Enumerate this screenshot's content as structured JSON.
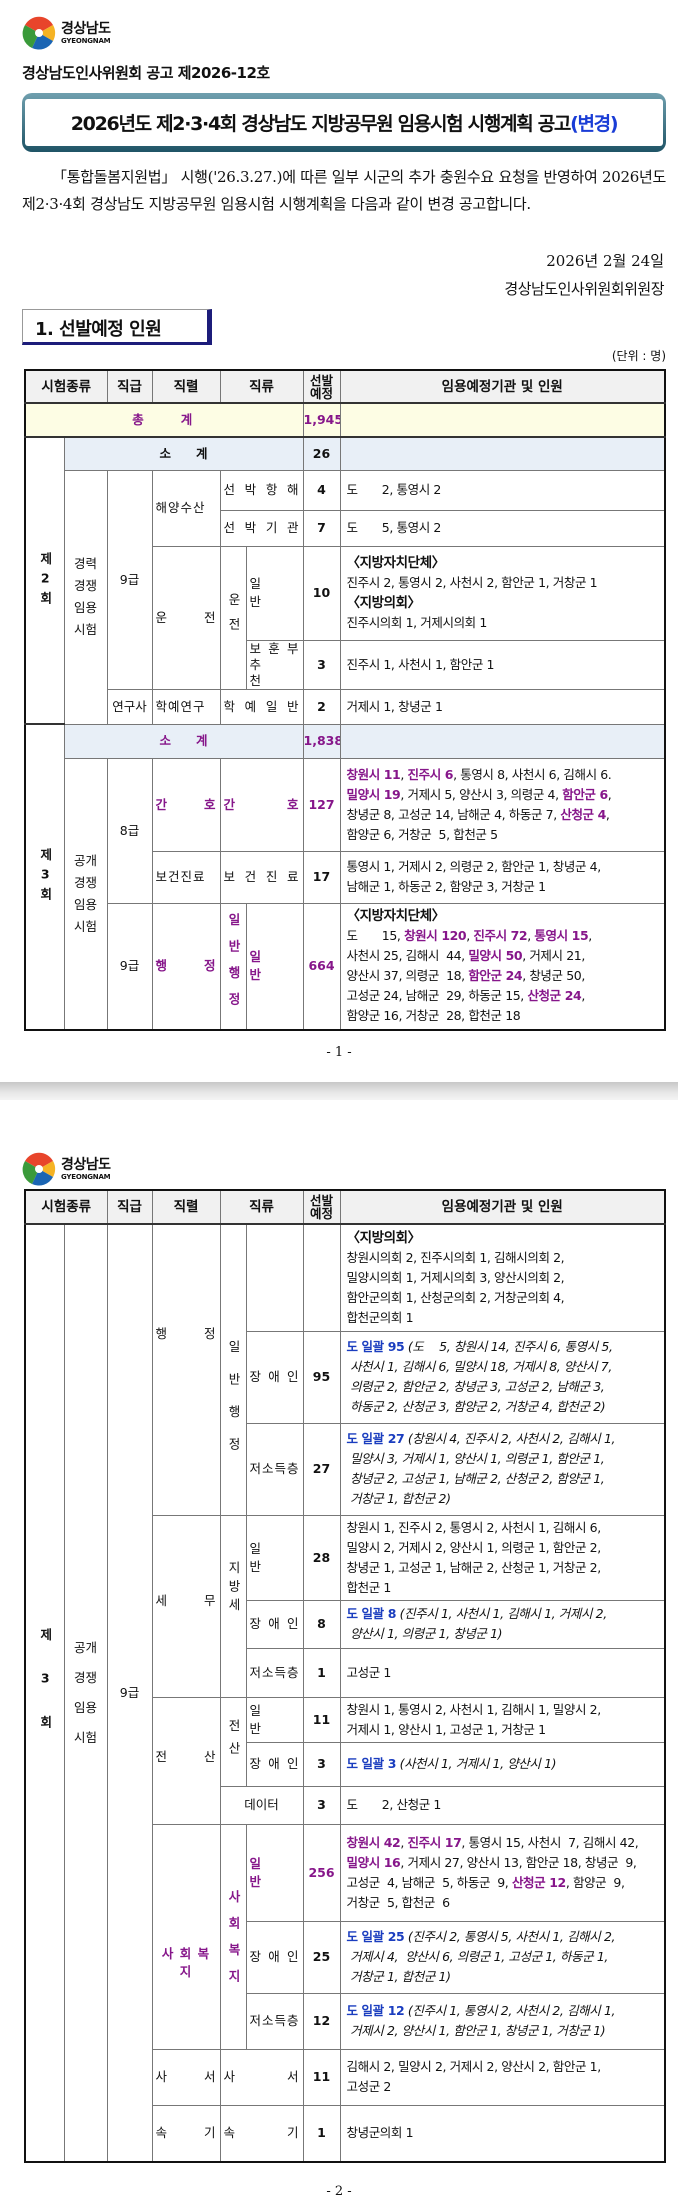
{
  "header": {
    "logo_name": "경상남도",
    "logo_en": "GYEONGNAM",
    "notice_no": "경상남도인사위원회 공고 제2026-12호",
    "title_main": "2026년도 제2·3·4회 경상남도 지방공무원 임용시험 시행계획 공고",
    "title_suffix": "(변경)"
  },
  "body": {
    "paragraph": "「통합돌봄지원법」 시행('26.3.27.)에 따른 일부 시군의 추가 충원수요 요청을 반영하여 2026년도 제2·3·4회 경상남도 지방공무원 임용시험 시행계획을 다음과 같이 변경 공고합니다.",
    "date": "2026년  2월  24일",
    "signer": "경상남도인사위원회위원장"
  },
  "section": {
    "heading": "1. 선발예정 인원",
    "unit": "(단위 : 명)"
  },
  "columns": {
    "exam_type": "시험종류",
    "grade": "직급",
    "series": "직렬",
    "class": "직류",
    "count": "선발예정",
    "agencies": "임용예정기관 및 인원"
  },
  "colors": {
    "highlight_purple": "#86168a",
    "highlight_blue": "#1a3dbf",
    "total_bg": "#fdfde4",
    "subtotal_bg": "#e8eff7"
  },
  "page1": {
    "total_label": "총　　계",
    "total_count": "1,945",
    "round2": "제2회",
    "round2_sub_label": "소　　계",
    "round2_sub_count": "26",
    "round2_type": "경력경쟁임용시험",
    "round2_grade": "9급",
    "rows2": [
      {
        "series": "해양수산",
        "cls": "선 박 항 해",
        "count": "4",
        "ag": [
          [
            "도　　2, 통영시 2"
          ]
        ]
      },
      {
        "cls": "선 박 기 관",
        "count": "7",
        "ag": [
          [
            "도　　5, 통영시 2"
          ]
        ]
      },
      {
        "series": "운　　전",
        "cls1": "운전",
        "cls": "일　　반",
        "count": "10",
        "ag": [
          [
            [
              "〈지방자치단체〉",
              "h"
            ]
          ],
          [
            "진주시 2, 통영시 2, 사천시 2, 함안군 1, 거창군 1"
          ],
          [
            [
              "〈지방의회〉",
              "h"
            ]
          ],
          [
            "진주시의회 1, 거제시의회 1"
          ]
        ]
      },
      {
        "cls": "보 훈 부 추　　천",
        "count": "3",
        "ag": [
          [
            "진주시 1, 사천시 1, 함안군 1"
          ]
        ]
      },
      {
        "grade": "연구사",
        "series": "학예연구",
        "cls": "학 예 일 반",
        "count": "2",
        "ag": [
          [
            "거제시 1, 창녕군 1"
          ]
        ]
      }
    ],
    "round3": "제3회",
    "round3_sub_label": "소　　계",
    "round3_sub_count": "1,838",
    "round3_type": "공개경쟁임용시험",
    "rows3": [
      {
        "grade": "8급",
        "series": "간　　호",
        "cls": "간　　호",
        "count": "127",
        "ag": [
          [
            [
              "창원시 11",
              "p"
            ],
            ", ",
            [
              "진주시 6",
              "p"
            ],
            ", 통영시 8, 사천시 6, 김해시 6."
          ],
          [
            [
              "밀양시 19",
              "p"
            ],
            ", 거제시 5, 양산시 3, 의령군 4, ",
            [
              "함안군 6",
              "p"
            ],
            ","
          ],
          [
            "창녕군 8, 고성군 14, 남해군 4, 하동군 7, ",
            [
              "산청군 4",
              "p"
            ],
            ","
          ],
          [
            "함양군 6, 거창군  5, 합천군 5"
          ]
        ]
      },
      {
        "series": "보건진료",
        "cls": "보 건 진 료",
        "count": "17",
        "ag": [
          [
            "통영시 1, 거제시 2, 의령군 2, 함안군 1, 창녕군 4,"
          ],
          [
            "남해군 1, 하동군 2, 함양군 3, 거창군 1"
          ]
        ]
      },
      {
        "grade": "9급",
        "series": "행　　정",
        "cls1": "일반행정",
        "cls": "일　　반",
        "count": "664",
        "ag": [
          [
            [
              "〈지방자치단체〉",
              "h"
            ]
          ],
          [
            "도　　15, ",
            [
              "창원시 120",
              "p"
            ],
            ", ",
            [
              "진주시 72",
              "p"
            ],
            ", ",
            [
              "통영시 15",
              "p"
            ],
            ","
          ],
          [
            "사천시 25, 김해시  44, ",
            [
              "밀양시 50",
              "p"
            ],
            ", 거제시 21,"
          ],
          [
            "양산시 37, 의령군  18, ",
            [
              "함안군 24",
              "p"
            ],
            ", 창녕군 50,"
          ],
          [
            "고성군 24, 남해군  29, 하동군 15, ",
            [
              "산청군 24",
              "p"
            ],
            ","
          ],
          [
            "함양군 16, 거창군  28, 합천군 18"
          ]
        ]
      }
    ]
  },
  "page2": {
    "round": "제3회",
    "type": "공개경쟁임용시험",
    "grade": "9급",
    "rows": [
      {
        "series": "행　　정",
        "cls1": "일반행정",
        "ag": [
          [
            [
              "〈지방의회〉",
              "h"
            ]
          ],
          [
            "창원시의회 2, 진주시의회 1, 김해시의회 2,"
          ],
          [
            "밀양시의회 1, 거제시의회 3, 양산시의회 2,"
          ],
          [
            "함안군의회 1, 산청군의회 2, 거창군의회 4,"
          ],
          [
            "합천군의회 1"
          ]
        ]
      },
      {
        "cls": "장 애 인",
        "count": "95",
        "ag": [
          [
            [
              "도 일괄 95",
              "b"
            ],
            [
              " (도　 5, 창원시 14, 진주시 6, 통영시 5,",
              "i"
            ]
          ],
          [
            [
              " 사천시 1, 김해시 6, 밀양시 18, 거제시 8, 양산시 7,",
              "i"
            ]
          ],
          [
            [
              " 의령군 2, 함안군 2, 창녕군 3, 고성군 2, 남해군 3,",
              "i"
            ]
          ],
          [
            [
              " 하동군 2, 산청군 3, 함양군 2, 거창군 4, 합천군 2)",
              "i"
            ]
          ]
        ]
      },
      {
        "cls": "저소득층",
        "count": "27",
        "ag": [
          [
            [
              "도 일괄 27",
              "b"
            ],
            [
              " (창원시 4, 진주시 2, 사천시 2, 김해시 1,",
              "i"
            ]
          ],
          [
            [
              " 밀양시 3, 거제시 1, 양산시 1, 의령군 1, 함안군 1,",
              "i"
            ]
          ],
          [
            [
              " 창녕군 2, 고성군 1, 남해군 2, 산청군 2, 함양군 1,",
              "i"
            ]
          ],
          [
            [
              " 거창군 1, 합천군 2)",
              "i"
            ]
          ]
        ]
      },
      {
        "series": "세　　무",
        "cls1": "지방세",
        "cls": "일　　반",
        "count": "28",
        "ag": [
          [
            "창원시 1, 진주시 2, 통영시 2, 사천시 1, 김해시 6,"
          ],
          [
            "밀양시 2, 거제시 2, 양산시 1, 의령군 1, 함안군 2,"
          ],
          [
            "창녕군 1, 고성군 1, 남해군 2, 산청군 1, 거창군 2,"
          ],
          [
            "합천군 1"
          ]
        ]
      },
      {
        "cls": "장 애 인",
        "count": "8",
        "ag": [
          [
            [
              "도 일괄 8",
              "b"
            ],
            [
              " (진주시 1, 사천시 1, 김해시 1, 거제시 2,",
              "i"
            ]
          ],
          [
            [
              " 양산시 1, 의령군 1, 창녕군 1)",
              "i"
            ]
          ]
        ]
      },
      {
        "cls": "저소득층",
        "count": "1",
        "ag": [
          [
            "고성군 1"
          ]
        ]
      },
      {
        "series": "전　　산",
        "cls1": "전산",
        "cls": "일　　반",
        "count": "11",
        "ag": [
          [
            "창원시 1, 통영시 2, 사천시 1, 김해시 1, 밀양시 2,"
          ],
          [
            "거제시 1, 양산시 1, 고성군 1, 거창군 1"
          ]
        ]
      },
      {
        "cls": "장 애 인",
        "count": "3",
        "ag": [
          [
            [
              "도 일괄 3",
              "b"
            ],
            [
              " (사천시 1, 거제시 1, 양산시 1)",
              "i"
            ]
          ]
        ]
      },
      {
        "cls": "데이터",
        "count": "3",
        "ag": [
          [
            "도　　2, 산청군 1"
          ]
        ]
      },
      {
        "series": "사 회 복 지",
        "cls1": "사회복지",
        "cls": "일　　반",
        "count": "256",
        "ag": [
          [
            [
              "창원시 42",
              "p"
            ],
            ", ",
            [
              "진주시 17",
              "p"
            ],
            ", 통영시 15, 사천시  7, 김해시 42,"
          ],
          [
            [
              "밀양시 16",
              "p"
            ],
            ", 거제시 27, 양산시 13, 함안군 18, 창녕군  9,"
          ],
          [
            "고성군  4, 남해군  5, 하동군  9, ",
            [
              "산청군 12",
              "p"
            ],
            ", 함양군  9,"
          ],
          [
            "거창군  5, 합천군  6"
          ]
        ]
      },
      {
        "cls": "장 애 인",
        "count": "25",
        "ag": [
          [
            [
              "도 일괄 25",
              "b"
            ],
            [
              " (진주시 2, 통영시 5, 사천시 1, 김해시 2,",
              "i"
            ]
          ],
          [
            [
              " 거제시 4,  양산시 6, 의령군 1, 고성군 1, 하동군 1,",
              "i"
            ]
          ],
          [
            [
              " 거창군 1, 합천군 1)",
              "i"
            ]
          ]
        ]
      },
      {
        "cls": "저소득층",
        "count": "12",
        "ag": [
          [
            [
              "도 일괄 12",
              "b"
            ],
            [
              " (진주시 1, 통영시 2, 사천시 2, 김해시 1,",
              "i"
            ]
          ],
          [
            [
              " 거제시 2, 양산시 1, 함안군 1, 창녕군 1, 거창군 1)",
              "i"
            ]
          ]
        ]
      },
      {
        "series": "사　　서",
        "cls": "사　　　서",
        "count": "11",
        "ag": [
          [
            "김해시 2, 밀양시 2, 거제시 2, 양산시 2, 함안군 1,"
          ],
          [
            "고성군 2"
          ]
        ]
      },
      {
        "series": "속　　기",
        "cls": "속　　　기",
        "count": "1",
        "ag": [
          [
            "창녕군의회 1"
          ]
        ]
      }
    ]
  },
  "page_numbers": [
    "- 1 -",
    "- 2 -"
  ]
}
